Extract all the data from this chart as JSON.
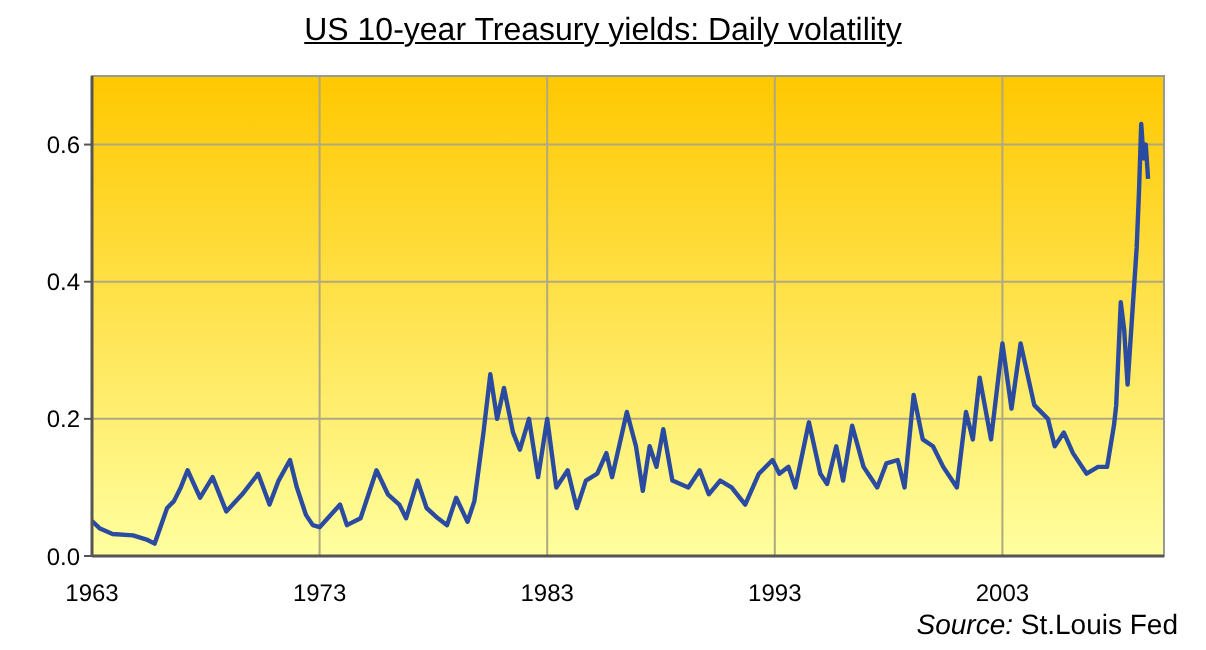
{
  "chart_data": {
    "type": "line",
    "title": "US 10-year Treasury yields: Daily volatility",
    "annotations": [
      "Source: St.Louis Fed"
    ],
    "xlim": [
      1963,
      2010.1
    ],
    "xticks": [
      1963,
      1973,
      1983,
      1993,
      2003
    ],
    "ylim": [
      0,
      0.7
    ],
    "yticks": [
      {
        "value": 0,
        "label": "0.0"
      },
      {
        "value": 0.2,
        "label": "0.2"
      },
      {
        "value": 0.4,
        "label": "0.4"
      },
      {
        "value": 0.6,
        "label": "0.6"
      }
    ],
    "grid": true,
    "marker": "none",
    "line_style": "solid",
    "series": [
      {
        "color": "#2b4ba0",
        "x": [
          1963,
          1963.35,
          1963.9,
          1964.8,
          1965.4,
          1965.75,
          1966.3,
          1966.6,
          1966.9,
          1967.2,
          1967.75,
          1968.3,
          1968.9,
          1969.6,
          1970.3,
          1970.8,
          1971.2,
          1971.7,
          1972.0,
          1972.4,
          1972.7,
          1973.0,
          1973.9,
          1974.2,
          1974.8,
          1975.5,
          1976.0,
          1976.5,
          1976.8,
          1977.3,
          1977.7,
          1978.2,
          1978.6,
          1979.0,
          1979.5,
          1979.8,
          1980.2,
          1980.5,
          1980.8,
          1981.1,
          1981.5,
          1981.8,
          1982.2,
          1982.6,
          1983.0,
          1983.4,
          1983.9,
          1984.3,
          1984.7,
          1985.2,
          1985.6,
          1985.85,
          1986.5,
          1986.9,
          1987.2,
          1987.5,
          1987.8,
          1988.1,
          1988.5,
          1989.2,
          1989.7,
          1990.1,
          1990.6,
          1991.1,
          1991.7,
          1992.3,
          1992.9,
          1993.2,
          1993.6,
          1993.9,
          1994.5,
          1995.0,
          1995.3,
          1995.7,
          1996.0,
          1996.4,
          1996.9,
          1997.5,
          1997.9,
          1998.4,
          1998.7,
          1999.1,
          1999.5,
          1999.95,
          2000.4,
          2001.0,
          2001.4,
          2001.7,
          2002.0,
          2002.5,
          2003.0,
          2003.4,
          2003.8,
          2004.4,
          2005.0,
          2005.3,
          2005.7,
          2006.1,
          2006.7,
          2007.2,
          2007.6,
          2007.9,
          2008.0,
          2008.2,
          2008.35,
          2008.5,
          2008.7,
          2008.9,
          2009.0,
          2009.1,
          2009.2,
          2009.3,
          2009.4
        ],
        "values": [
          0.051,
          0.04,
          0.032,
          0.03,
          0.024,
          0.018,
          0.07,
          0.08,
          0.1,
          0.125,
          0.085,
          0.115,
          0.065,
          0.09,
          0.12,
          0.075,
          0.11,
          0.14,
          0.1,
          0.06,
          0.045,
          0.042,
          0.075,
          0.045,
          0.055,
          0.125,
          0.09,
          0.075,
          0.055,
          0.11,
          0.07,
          0.055,
          0.045,
          0.085,
          0.05,
          0.08,
          0.18,
          0.265,
          0.2,
          0.245,
          0.18,
          0.155,
          0.2,
          0.115,
          0.2,
          0.1,
          0.125,
          0.07,
          0.11,
          0.12,
          0.15,
          0.115,
          0.21,
          0.16,
          0.095,
          0.16,
          0.13,
          0.185,
          0.11,
          0.1,
          0.125,
          0.09,
          0.11,
          0.1,
          0.075,
          0.12,
          0.14,
          0.12,
          0.13,
          0.1,
          0.195,
          0.12,
          0.105,
          0.16,
          0.11,
          0.19,
          0.13,
          0.1,
          0.135,
          0.14,
          0.1,
          0.235,
          0.17,
          0.16,
          0.13,
          0.1,
          0.21,
          0.17,
          0.26,
          0.17,
          0.31,
          0.215,
          0.31,
          0.22,
          0.2,
          0.16,
          0.18,
          0.15,
          0.12,
          0.13,
          0.13,
          0.19,
          0.22,
          0.37,
          0.33,
          0.25,
          0.35,
          0.45,
          0.53,
          0.63,
          0.58,
          0.6,
          0.55
        ]
      }
    ]
  }
}
